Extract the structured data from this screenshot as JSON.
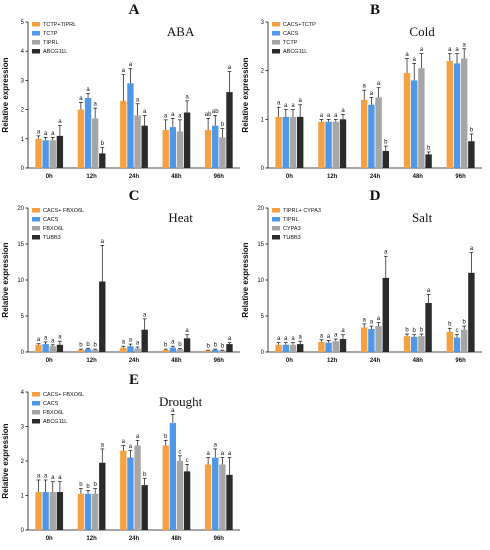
{
  "colors": [
    "#F4A144",
    "#4F98E8",
    "#A6A6A6",
    "#2B2B2B"
  ],
  "chart_data": [
    {
      "type": "bar",
      "letter": "A",
      "title": "ABA",
      "ylabel": "Relative expression",
      "categories": [
        "0h",
        "12h",
        "24h",
        "48h",
        "96h"
      ],
      "ylim": [
        0,
        5
      ],
      "yticks": [
        "0",
        "1",
        "2",
        "3",
        "4",
        "5"
      ],
      "series": [
        {
          "name": "TCTP+TIPRL",
          "values": [
            1.0,
            2.0,
            2.3,
            1.3,
            1.3
          ],
          "errors": [
            0.1,
            0.25,
            0.9,
            0.35,
            0.4
          ],
          "labels": [
            "a",
            "a",
            "a",
            "a",
            "ab"
          ]
        },
        {
          "name": "TCTP",
          "values": [
            0.95,
            2.4,
            2.9,
            1.4,
            1.45
          ],
          "errors": [
            0.1,
            0.15,
            0.5,
            0.3,
            0.35
          ],
          "labels": [
            "a",
            "a",
            "a",
            "a",
            "ab"
          ]
        },
        {
          "name": "TIPRL",
          "values": [
            0.95,
            1.7,
            1.8,
            1.25,
            1.05
          ],
          "errors": [
            0.1,
            0.35,
            0.4,
            0.4,
            0.3
          ],
          "labels": [
            "a",
            "a",
            "a",
            "a",
            "b"
          ]
        },
        {
          "name": "ABCG11L",
          "values": [
            1.1,
            0.5,
            1.45,
            1.9,
            2.6
          ],
          "errors": [
            0.35,
            0.2,
            0.35,
            0.4,
            0.7
          ],
          "labels": [
            "a",
            "b",
            "a",
            "a",
            "a"
          ]
        }
      ]
    },
    {
      "type": "bar",
      "letter": "B",
      "title": "Cold",
      "ylabel": "Relative expression",
      "categories": [
        "0h",
        "12h",
        "24h",
        "48h",
        "96h"
      ],
      "ylim": [
        0,
        3
      ],
      "yticks": [
        "0",
        "1",
        "2",
        "3"
      ],
      "series": [
        {
          "name": "CACS+TCTP",
          "values": [
            1.05,
            0.95,
            1.4,
            1.95,
            2.2
          ],
          "errors": [
            0.2,
            0.05,
            0.2,
            0.3,
            0.15
          ],
          "labels": [
            "a",
            "a",
            "a",
            "a",
            "a"
          ]
        },
        {
          "name": "CACS",
          "values": [
            1.05,
            0.95,
            1.3,
            1.8,
            2.15
          ],
          "errors": [
            0.15,
            0.05,
            0.15,
            0.35,
            0.2
          ],
          "labels": [
            "a",
            "a",
            "a",
            "a",
            "a"
          ]
        },
        {
          "name": "TCTP",
          "values": [
            1.05,
            0.95,
            1.45,
            2.05,
            2.25
          ],
          "errors": [
            0.15,
            0.05,
            0.2,
            0.3,
            0.2
          ],
          "labels": [
            "a",
            "a",
            "a",
            "a",
            "a"
          ]
        },
        {
          "name": "ABCG11L",
          "values": [
            1.05,
            1.0,
            0.35,
            0.28,
            0.55
          ],
          "errors": [
            0.25,
            0.1,
            0.1,
            0.05,
            0.15
          ],
          "labels": [
            "a",
            "a",
            "b",
            "b",
            "b"
          ]
        }
      ]
    },
    {
      "type": "bar",
      "letter": "C",
      "title": "Heat",
      "ylabel": "Relative expression",
      "categories": [
        "0h",
        "12h",
        "24h",
        "48h",
        "96h"
      ],
      "ylim": [
        0,
        20
      ],
      "yticks": [
        "0",
        "5",
        "10",
        "15",
        "20"
      ],
      "series": [
        {
          "name": "CACS+ FBXO6L",
          "values": [
            1.0,
            0.3,
            0.6,
            0.3,
            0.2
          ],
          "errors": [
            0.15,
            0.1,
            0.2,
            0.1,
            0.05
          ],
          "labels": [
            "a",
            "b",
            "a",
            "b",
            "b"
          ]
        },
        {
          "name": "CACS",
          "values": [
            1.1,
            0.4,
            0.8,
            0.6,
            0.3
          ],
          "errors": [
            0.3,
            0.1,
            0.3,
            0.2,
            0.1
          ],
          "labels": [
            "a",
            "b",
            "a",
            "a",
            "b"
          ]
        },
        {
          "name": "FBXO6L",
          "values": [
            0.8,
            0.3,
            0.5,
            0.4,
            0.2
          ],
          "errors": [
            0.2,
            0.1,
            0.2,
            0.1,
            0.05
          ],
          "labels": [
            "a",
            "b",
            "a",
            "b",
            "b"
          ]
        },
        {
          "name": "TUBB3",
          "values": [
            1.0,
            9.8,
            3.1,
            1.9,
            1.1
          ],
          "errors": [
            0.5,
            5.0,
            1.5,
            0.5,
            0.2
          ],
          "labels": [
            "a",
            "a",
            "a",
            "a",
            "a"
          ]
        }
      ]
    },
    {
      "type": "bar",
      "letter": "D",
      "title": "Salt",
      "ylabel": "Relative expression",
      "categories": [
        "0h",
        "12h",
        "24h",
        "48h",
        "96h"
      ],
      "ylim": [
        0,
        20
      ],
      "yticks": [
        "0",
        "5",
        "10",
        "15",
        "20"
      ],
      "series": [
        {
          "name": "TIPRL+ CYPA3",
          "values": [
            1.0,
            1.4,
            3.4,
            2.2,
            2.8
          ],
          "errors": [
            0.3,
            0.3,
            0.5,
            0.3,
            0.5
          ],
          "labels": [
            "a",
            "a",
            "a",
            "b",
            "b"
          ]
        },
        {
          "name": "TIPRL",
          "values": [
            1.0,
            1.3,
            3.2,
            2.1,
            2.0
          ],
          "errors": [
            0.3,
            0.3,
            0.4,
            0.3,
            0.4
          ],
          "labels": [
            "a",
            "a",
            "a",
            "b",
            "c"
          ]
        },
        {
          "name": "CYPA3",
          "values": [
            1.0,
            1.5,
            3.6,
            2.2,
            3.1
          ],
          "errors": [
            0.3,
            0.3,
            0.5,
            0.3,
            0.5
          ],
          "labels": [
            "a",
            "a",
            "a",
            "b",
            "b"
          ]
        },
        {
          "name": "TUBB3",
          "values": [
            1.1,
            1.8,
            10.3,
            6.8,
            11.0
          ],
          "errors": [
            0.4,
            0.6,
            3.0,
            1.2,
            2.8
          ],
          "labels": [
            "a",
            "a",
            "a",
            "a",
            "a"
          ]
        }
      ]
    },
    {
      "type": "bar",
      "letter": "E",
      "title": "Drought",
      "ylabel": "Relative expression",
      "categories": [
        "0h",
        "12h",
        "24h",
        "48h",
        "96h"
      ],
      "ylim": [
        0,
        4
      ],
      "yticks": [
        "0",
        "1",
        "2",
        "3",
        "4"
      ],
      "series": [
        {
          "name": "CACS+ FBXO6L",
          "values": [
            1.1,
            1.05,
            2.3,
            2.45,
            1.9
          ],
          "errors": [
            0.35,
            0.15,
            0.15,
            0.15,
            0.2
          ],
          "labels": [
            "a",
            "b",
            "a",
            "b",
            "a"
          ]
        },
        {
          "name": "CACS",
          "values": [
            1.1,
            1.05,
            2.1,
            3.1,
            2.1
          ],
          "errors": [
            0.35,
            0.1,
            0.2,
            0.25,
            0.25
          ],
          "labels": [
            "a",
            "b",
            "a",
            "a",
            "a"
          ]
        },
        {
          "name": "FBXO6L",
          "values": [
            1.1,
            1.05,
            2.45,
            2.0,
            1.9
          ],
          "errors": [
            0.3,
            0.15,
            0.15,
            0.15,
            0.2
          ],
          "labels": [
            "a",
            "b",
            "a",
            "c",
            "a"
          ]
        },
        {
          "name": "ABCG11L",
          "values": [
            1.1,
            1.95,
            1.3,
            1.7,
            1.6
          ],
          "errors": [
            0.3,
            0.4,
            0.2,
            0.2,
            0.5
          ],
          "labels": [
            "a",
            "a",
            "b",
            "c",
            "a"
          ]
        }
      ]
    }
  ]
}
